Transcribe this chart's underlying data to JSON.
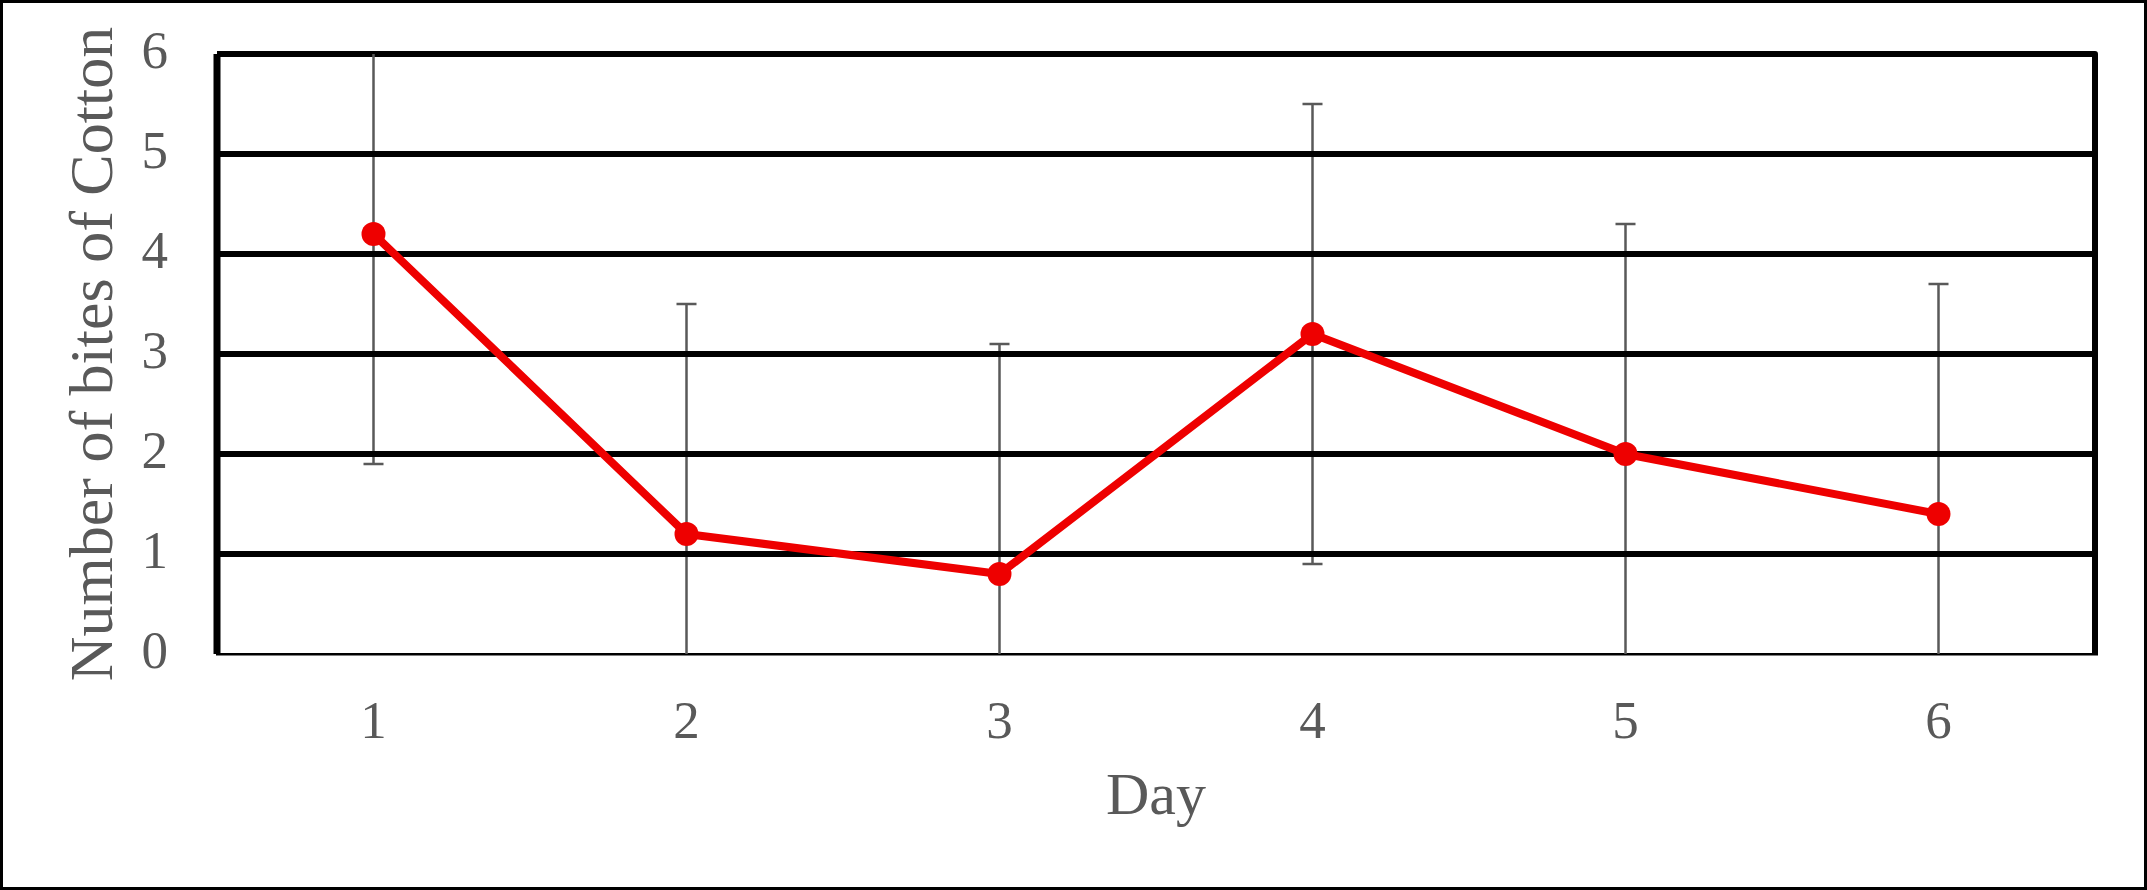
{
  "chart_data": {
    "type": "line",
    "xlabel": "Day",
    "ylabel": "Number of bites of Cotton",
    "categories": [
      "1",
      "2",
      "3",
      "4",
      "5",
      "6"
    ],
    "values": [
      4.2,
      1.2,
      0.8,
      3.2,
      2.0,
      1.4
    ],
    "color": "#ee0000",
    "errors": [
      [
        1.9,
        6
      ],
      [
        0,
        3.5
      ],
      [
        0,
        3.1
      ],
      [
        0.9,
        5.5
      ],
      [
        0,
        4.3
      ],
      [
        0,
        3.7
      ]
    ],
    "ylim": [
      0,
      6
    ],
    "yticks": [
      0,
      1,
      2,
      3,
      4,
      5,
      6
    ],
    "grid": "y",
    "legend": false,
    "marker": "circle",
    "line_style": "solid"
  }
}
